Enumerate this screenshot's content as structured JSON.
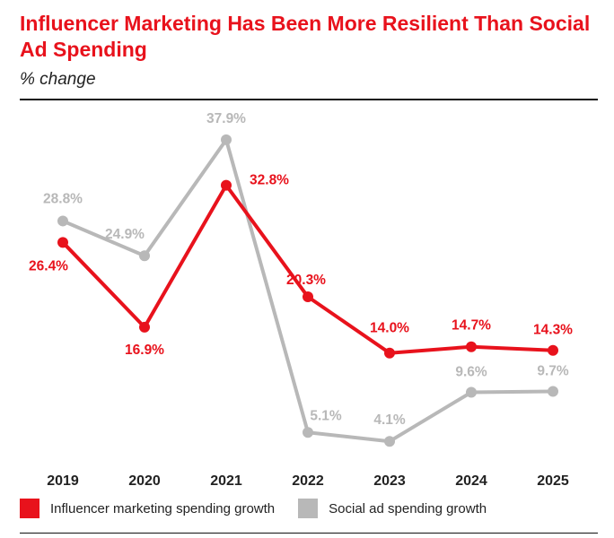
{
  "title": "Influencer Marketing Has Been More Resilient Than Social Ad Spending",
  "subtitle": "% change",
  "colors": {
    "influencer": "#e8121c",
    "social": "#b8b8b8",
    "title": "#e8121c"
  },
  "chart_data": {
    "type": "line",
    "x": [
      "2019",
      "2020",
      "2021",
      "2022",
      "2023",
      "2024",
      "2025"
    ],
    "series": [
      {
        "name": "Influencer marketing spending growth",
        "values": [
          26.4,
          16.9,
          32.8,
          20.3,
          14.0,
          14.7,
          14.3
        ],
        "labels": [
          "26.4%",
          "16.9%",
          "32.8%",
          "20.3%",
          "14.0%",
          "14.7%",
          "14.3%"
        ]
      },
      {
        "name": "Social ad spending growth",
        "values": [
          28.8,
          24.9,
          37.9,
          5.1,
          4.1,
          9.6,
          9.7
        ],
        "labels": [
          "28.8%",
          "24.9%",
          "37.9%",
          "5.1%",
          "4.1%",
          "9.6%",
          "9.7%"
        ]
      }
    ],
    "legend": {
      "position": "bottom"
    }
  }
}
